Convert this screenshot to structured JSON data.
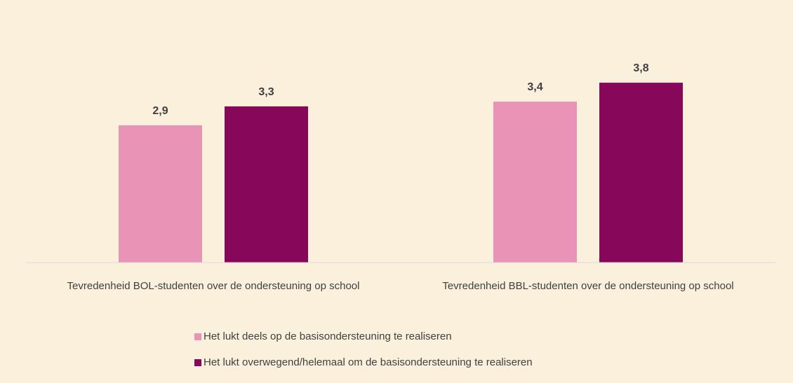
{
  "chart_data": {
    "type": "bar",
    "categories": [
      "Tevredenheid BOL-studenten over de ondersteuning op school",
      "Tevredenheid BBL-studenten over de ondersteuning op school"
    ],
    "series": [
      {
        "name": "Het lukt deels op de basisondersteuning te realiseren",
        "color": "#e993b6",
        "values": [
          2.9,
          3.4
        ],
        "value_labels": [
          "2,9",
          "3,4"
        ]
      },
      {
        "name": "Het lukt overwegend/helemaal om de basisondersteuning te realiseren",
        "color": "#87085a",
        "values": [
          3.3,
          3.8
        ],
        "value_labels": [
          "3,3",
          "3,8"
        ]
      }
    ],
    "ylim": [
      0,
      5
    ]
  }
}
